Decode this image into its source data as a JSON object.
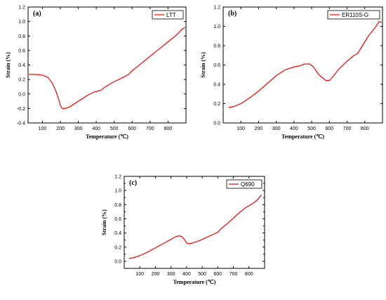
{
  "colors": {
    "series": "#ff0000",
    "axis": "#000000"
  },
  "chart_data": [
    {
      "type": "line",
      "panel_label": "(a)",
      "xlabel": "Temperature (℃)",
      "ylabel": "Strain (%)",
      "xlim": [
        20,
        900
      ],
      "ylim": [
        -0.4,
        1.2
      ],
      "xticks": [
        100,
        200,
        300,
        400,
        500,
        600,
        700,
        800
      ],
      "yticks": [
        -0.4,
        -0.2,
        0.0,
        0.2,
        0.4,
        0.6,
        0.8,
        1.0,
        1.2
      ],
      "grid": false,
      "legend_position": "top-right",
      "series": [
        {
          "name": "LTT",
          "x": [
            25,
            60,
            100,
            130,
            155,
            175,
            190,
            200,
            210,
            225,
            250,
            300,
            350,
            390,
            410,
            425,
            450,
            500,
            550,
            580,
            600,
            650,
            700,
            750,
            800,
            850,
            880,
            895
          ],
          "y": [
            0.27,
            0.27,
            0.26,
            0.23,
            0.15,
            0.04,
            -0.07,
            -0.16,
            -0.2,
            -0.2,
            -0.18,
            -0.1,
            -0.02,
            0.03,
            0.04,
            0.05,
            0.1,
            0.17,
            0.23,
            0.27,
            0.32,
            0.42,
            0.52,
            0.62,
            0.72,
            0.82,
            0.9,
            0.92
          ]
        }
      ]
    },
    {
      "type": "line",
      "panel_label": "(b)",
      "xlabel": "Temperature (℃)",
      "ylabel": "Strain (%)",
      "xlim": [
        0,
        900
      ],
      "ylim": [
        0.0,
        1.2
      ],
      "xticks": [
        100,
        200,
        300,
        400,
        500,
        600,
        700,
        800
      ],
      "yticks": [
        0.0,
        0.2,
        0.4,
        0.6,
        0.8,
        1.0,
        1.2
      ],
      "grid": false,
      "legend_position": "top-right",
      "series": [
        {
          "name": "ER110S-G",
          "x": [
            30,
            60,
            100,
            150,
            200,
            250,
            300,
            350,
            400,
            430,
            460,
            490,
            510,
            540,
            560,
            580,
            600,
            620,
            650,
            700,
            740,
            760,
            780,
            820,
            860,
            880,
            895
          ],
          "y": [
            0.16,
            0.17,
            0.2,
            0.26,
            0.33,
            0.41,
            0.49,
            0.55,
            0.58,
            0.59,
            0.61,
            0.61,
            0.58,
            0.5,
            0.47,
            0.44,
            0.44,
            0.48,
            0.55,
            0.64,
            0.7,
            0.72,
            0.78,
            0.9,
            0.99,
            1.05,
            1.04
          ]
        }
      ]
    },
    {
      "type": "line",
      "panel_label": "(c)",
      "xlabel": "Temperature (℃)",
      "ylabel": "Strain (%)",
      "xlim": [
        0,
        900
      ],
      "ylim": [
        -0.1,
        1.2
      ],
      "xticks": [
        100,
        200,
        300,
        400,
        500,
        600,
        700,
        800
      ],
      "yticks": [
        0.0,
        0.1,
        0.2,
        0.3,
        0.4,
        0.5,
        0.6,
        0.7,
        0.8,
        0.9,
        1.0,
        1.1,
        1.2
      ],
      "ytick_labels_shown": [
        0.0,
        0.2,
        0.4,
        0.6,
        0.8,
        1.0,
        1.2
      ],
      "grid": false,
      "legend_position": "top-right",
      "series": [
        {
          "name": "Q690",
          "x": [
            30,
            60,
            100,
            150,
            200,
            250,
            300,
            330,
            350,
            370,
            385,
            400,
            410,
            420,
            440,
            480,
            520,
            560,
            600,
            620,
            660,
            700,
            740,
            780,
            820,
            850,
            880
          ],
          "y": [
            0.04,
            0.05,
            0.08,
            0.13,
            0.19,
            0.25,
            0.31,
            0.35,
            0.36,
            0.35,
            0.31,
            0.26,
            0.25,
            0.25,
            0.26,
            0.29,
            0.33,
            0.37,
            0.41,
            0.46,
            0.53,
            0.61,
            0.69,
            0.76,
            0.81,
            0.86,
            0.94
          ]
        }
      ]
    }
  ]
}
